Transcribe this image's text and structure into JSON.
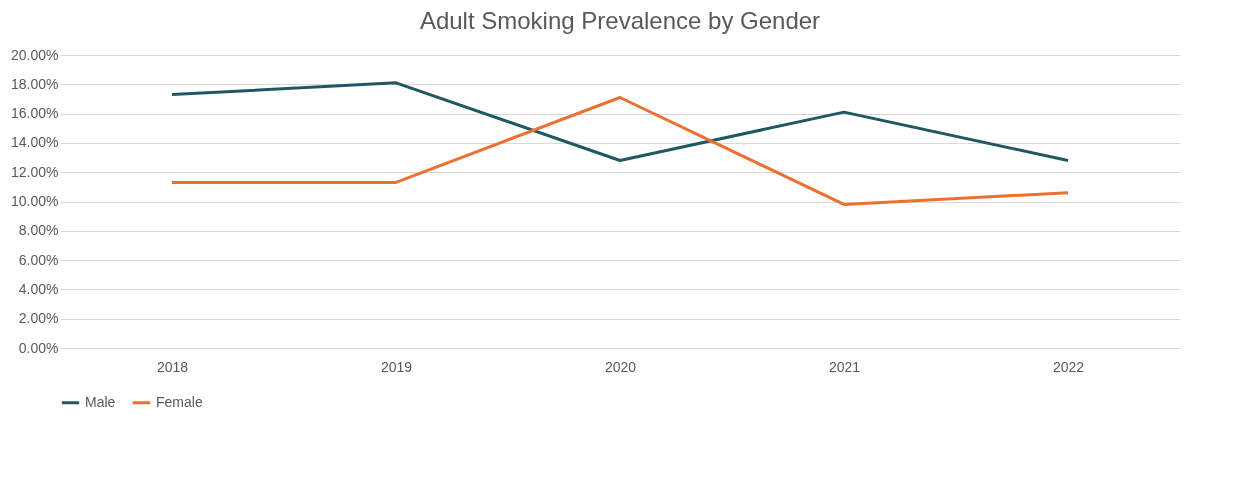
{
  "chart_data": {
    "type": "line",
    "title": "Adult Smoking Prevalence by Gender",
    "categories": [
      "2018",
      "2019",
      "2020",
      "2021",
      "2022"
    ],
    "series": [
      {
        "name": "Male",
        "color": "#1f5863",
        "values": [
          17.3,
          18.1,
          12.8,
          16.1,
          12.8
        ]
      },
      {
        "name": "Female",
        "color": "#ec7032",
        "values": [
          11.3,
          11.3,
          17.1,
          9.8,
          10.6
        ]
      }
    ],
    "ylim": [
      0,
      20
    ],
    "yticks": [
      {
        "value": 0,
        "label": "0.00%"
      },
      {
        "value": 2,
        "label": "2.00%"
      },
      {
        "value": 4,
        "label": "4.00%"
      },
      {
        "value": 6,
        "label": "6.00%"
      },
      {
        "value": 8,
        "label": "8.00%"
      },
      {
        "value": 10,
        "label": "10.00%"
      },
      {
        "value": 12,
        "label": "12.00%"
      },
      {
        "value": 14,
        "label": "14.00%"
      },
      {
        "value": 16,
        "label": "16.00%"
      },
      {
        "value": 18,
        "label": "18.00%"
      },
      {
        "value": 20,
        "label": "20.00%"
      }
    ],
    "grid": "y",
    "legend": "bottom",
    "marker": "none",
    "line_style": "solid"
  }
}
